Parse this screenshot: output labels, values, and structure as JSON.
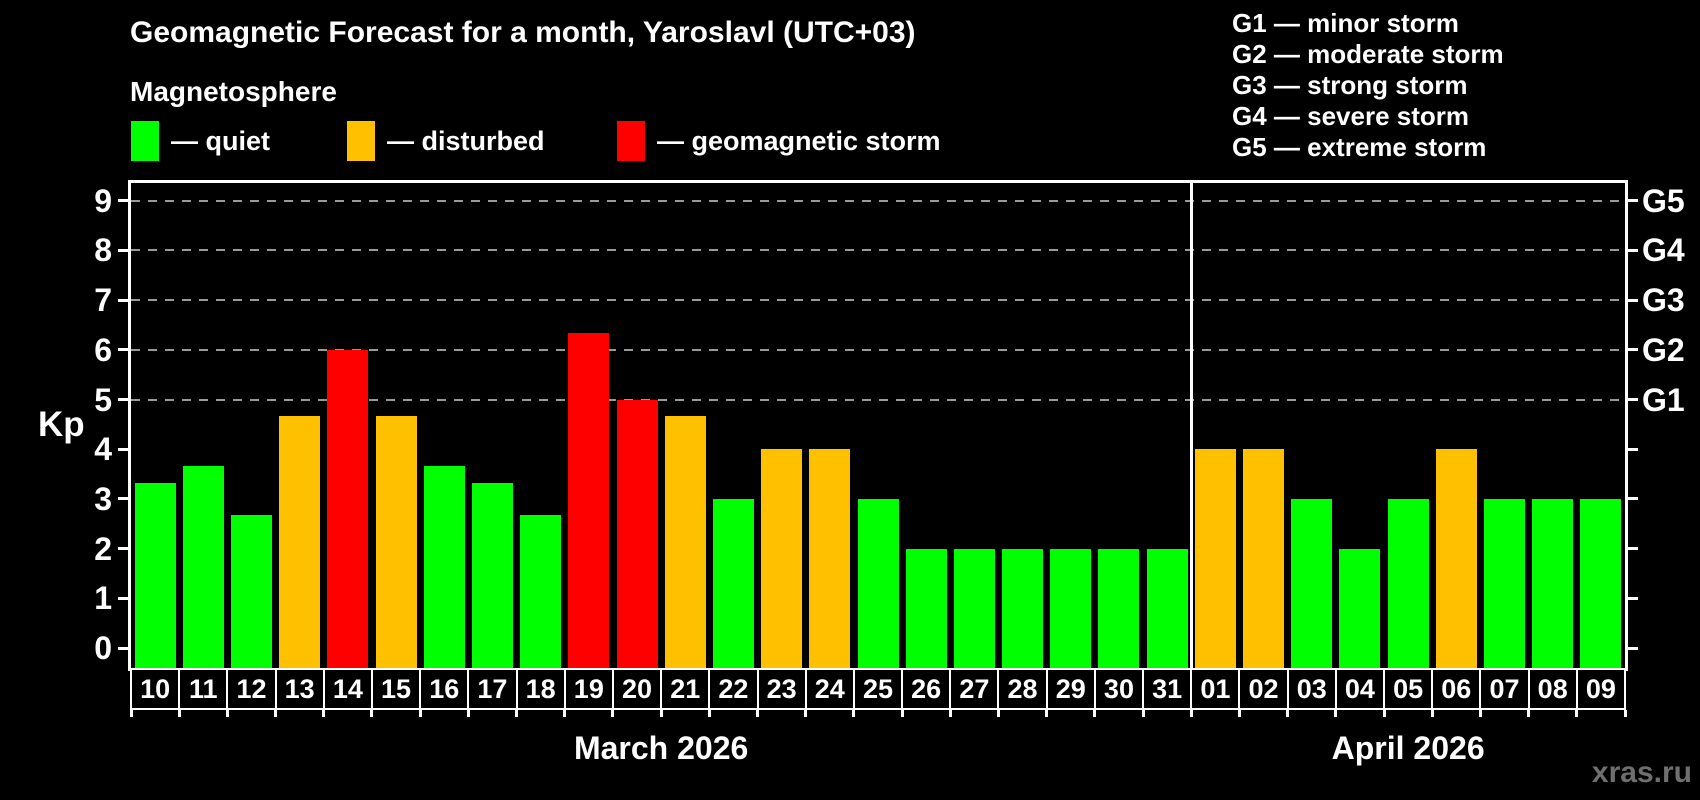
{
  "title": "Geomagnetic Forecast for a month, Yaroslavl (UTC+03)",
  "subtitle": "Magnetosphere",
  "legend": [
    {
      "key": "quiet",
      "label": "— quiet",
      "color": "#00ff00"
    },
    {
      "key": "disturbed",
      "label": "— disturbed",
      "color": "#ffc000"
    },
    {
      "key": "storm",
      "label": "— geomagnetic storm",
      "color": "#ff0000"
    }
  ],
  "storm_scale_legend": [
    "G1 — minor storm",
    "G2 — moderate storm",
    "G3 — strong storm",
    "G4 — severe storm",
    "G5 — extreme storm"
  ],
  "watermark": "xras.ru",
  "chart_data": {
    "type": "bar",
    "ylabel": "Kp",
    "ylim": [
      -0.4,
      9.36
    ],
    "y_ticks": [
      0,
      1,
      2,
      3,
      4,
      5,
      6,
      7,
      8,
      9
    ],
    "grid_levels": [
      5,
      6,
      7,
      8,
      9
    ],
    "grid_style": "dashed-gray-at-storm-levels-only",
    "legend_position": "top-left",
    "right_axis": [
      {
        "label": "G1",
        "kp": 5
      },
      {
        "label": "G2",
        "kp": 6
      },
      {
        "label": "G3",
        "kp": 7
      },
      {
        "label": "G4",
        "kp": 8
      },
      {
        "label": "G5",
        "kp": 9
      }
    ],
    "colors": {
      "quiet": "#00ff00",
      "disturbed": "#ffc000",
      "storm": "#ff0000"
    },
    "months": [
      {
        "label": "March 2026",
        "days": [
          {
            "day": "10",
            "kp": 3.33,
            "state": "quiet"
          },
          {
            "day": "11",
            "kp": 3.67,
            "state": "quiet"
          },
          {
            "day": "12",
            "kp": 2.67,
            "state": "quiet"
          },
          {
            "day": "13",
            "kp": 4.67,
            "state": "disturbed"
          },
          {
            "day": "14",
            "kp": 6.0,
            "state": "storm"
          },
          {
            "day": "15",
            "kp": 4.67,
            "state": "disturbed"
          },
          {
            "day": "16",
            "kp": 3.67,
            "state": "quiet"
          },
          {
            "day": "17",
            "kp": 3.33,
            "state": "quiet"
          },
          {
            "day": "18",
            "kp": 2.67,
            "state": "quiet"
          },
          {
            "day": "19",
            "kp": 6.33,
            "state": "storm"
          },
          {
            "day": "20",
            "kp": 5.0,
            "state": "storm"
          },
          {
            "day": "21",
            "kp": 4.67,
            "state": "disturbed"
          },
          {
            "day": "22",
            "kp": 3.0,
            "state": "quiet"
          },
          {
            "day": "23",
            "kp": 4.0,
            "state": "disturbed"
          },
          {
            "day": "24",
            "kp": 4.0,
            "state": "disturbed"
          },
          {
            "day": "25",
            "kp": 3.0,
            "state": "quiet"
          },
          {
            "day": "26",
            "kp": 2.0,
            "state": "quiet"
          },
          {
            "day": "27",
            "kp": 2.0,
            "state": "quiet"
          },
          {
            "day": "28",
            "kp": 2.0,
            "state": "quiet"
          },
          {
            "day": "29",
            "kp": 2.0,
            "state": "quiet"
          },
          {
            "day": "30",
            "kp": 2.0,
            "state": "quiet"
          },
          {
            "day": "31",
            "kp": 2.0,
            "state": "quiet"
          }
        ]
      },
      {
        "label": "April 2026",
        "days": [
          {
            "day": "01",
            "kp": 4.0,
            "state": "disturbed"
          },
          {
            "day": "02",
            "kp": 4.0,
            "state": "disturbed"
          },
          {
            "day": "03",
            "kp": 3.0,
            "state": "quiet"
          },
          {
            "day": "04",
            "kp": 2.0,
            "state": "quiet"
          },
          {
            "day": "05",
            "kp": 3.0,
            "state": "quiet"
          },
          {
            "day": "06",
            "kp": 4.0,
            "state": "disturbed"
          },
          {
            "day": "07",
            "kp": 3.0,
            "state": "quiet"
          },
          {
            "day": "08",
            "kp": 3.0,
            "state": "quiet"
          },
          {
            "day": "09",
            "kp": 3.0,
            "state": "quiet"
          }
        ]
      }
    ]
  }
}
